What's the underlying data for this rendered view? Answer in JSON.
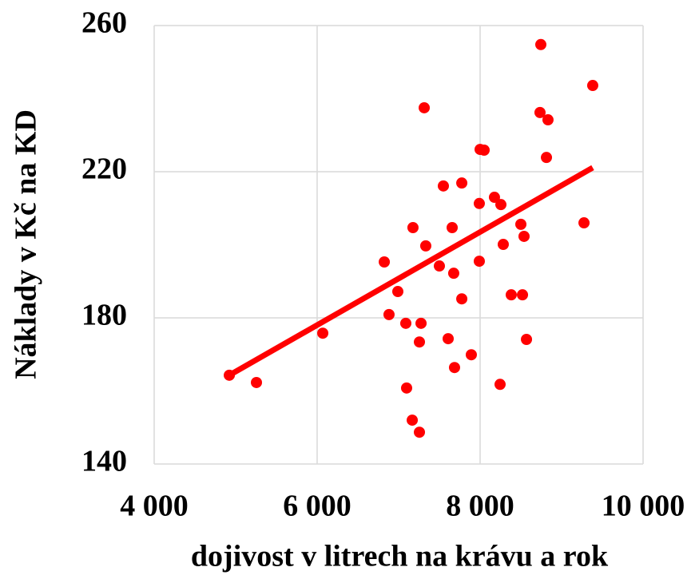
{
  "chart_data": {
    "type": "scatter",
    "x_label": "dojivost v litrech na krávu a rok",
    "y_label": "Náklady v Kč na KD",
    "color": "#ff0000",
    "grid": true,
    "xlim": [
      4000,
      10000
    ],
    "ylim": [
      140,
      260
    ],
    "xticks": [
      {
        "value": 4000,
        "label": "4 000"
      },
      {
        "value": 6000,
        "label": "6 000"
      },
      {
        "value": 8000,
        "label": "8 000"
      },
      {
        "value": 10000,
        "label": "10 000"
      }
    ],
    "yticks": [
      140,
      180,
      220,
      260
    ],
    "x": [
      4922,
      5255,
      6069,
      6824,
      6990,
      6882,
      7088,
      7275,
      7255,
      7098,
      7167,
      7255,
      7176,
      7333,
      7314,
      7500,
      7549,
      7775,
      7657,
      7676,
      7775,
      7608,
      7686,
      7892,
      7990,
      7990,
      8000,
      8049,
      8176,
      8255,
      8284,
      8245,
      8382,
      8520,
      8500,
      8539,
      8569,
      8745,
      8735,
      8833,
      8814,
      9275,
      9382
    ],
    "values": [
      164.3,
      162.3,
      175.8,
      195.3,
      187.2,
      180.9,
      178.5,
      178.5,
      173.4,
      160.8,
      152.0,
      148.7,
      204.7,
      199.7,
      237.5,
      194.2,
      216.1,
      216.9,
      204.7,
      192.2,
      185.2,
      174.3,
      166.4,
      169.9,
      195.5,
      211.3,
      226.1,
      225.9,
      213.0,
      211.0,
      200.1,
      161.8,
      186.3,
      186.3,
      205.6,
      202.3,
      174.1,
      254.8,
      236.2,
      234.2,
      223.9,
      206.0,
      243.6
    ],
    "trendline": {
      "x": [
        4922,
        9382
      ],
      "y": [
        164.3,
        221.1
      ]
    }
  }
}
